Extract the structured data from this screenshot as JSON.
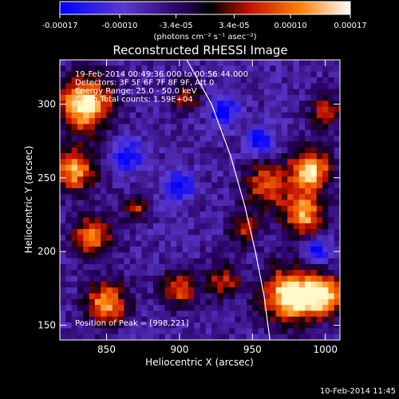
{
  "colorbar": {
    "tick_labels": [
      "-0.00017",
      "-0.00010",
      "-3.4e-05",
      "3.4e-05",
      "0.00010",
      "0.00017"
    ],
    "tick_values": [
      -0.00017,
      -0.0001,
      -3.4e-05,
      3.4e-05,
      0.0001,
      0.00017
    ],
    "range": [
      -0.00017,
      0.00017
    ],
    "unit_label": "(photons cm⁻² s⁻¹ asec⁻²)",
    "colors": [
      "#0000ff",
      "#6a3cc8",
      "#2a0060",
      "#000000",
      "#c01000",
      "#ff7a00",
      "#ffffff"
    ]
  },
  "chart_data": {
    "type": "heatmap",
    "title": "Reconstructed RHESSI Image",
    "xlabel": "Heliocentric X (arcsec)",
    "ylabel": "Heliocentric Y (arcsec)",
    "xlim": [
      818,
      1010
    ],
    "ylim": [
      140,
      330
    ],
    "xticks": [
      850,
      900,
      950,
      1000
    ],
    "yticks": [
      150,
      200,
      250,
      300
    ],
    "annotations": [
      "19-Feb-2014 00:49:36.000 to 00:56:44.000",
      "Detectors: 3F 5F 6F 7F 8F 9F, Att 0",
      "Energy Range: 25.0 - 50.0 keV",
      "Clean      Total counts: 1.59E+04"
    ],
    "peak_label": "Position of Peak = [998,221]",
    "peak_position": [
      998,
      221
    ],
    "limb": [
      [
        905,
        330
      ],
      [
        922,
        300
      ],
      [
        935,
        265
      ],
      [
        945,
        230
      ],
      [
        952,
        200
      ],
      [
        958,
        170
      ],
      [
        962,
        140
      ]
    ],
    "grid": false
  },
  "footer": {
    "timestamp": "10-Feb-2014 11:45"
  }
}
